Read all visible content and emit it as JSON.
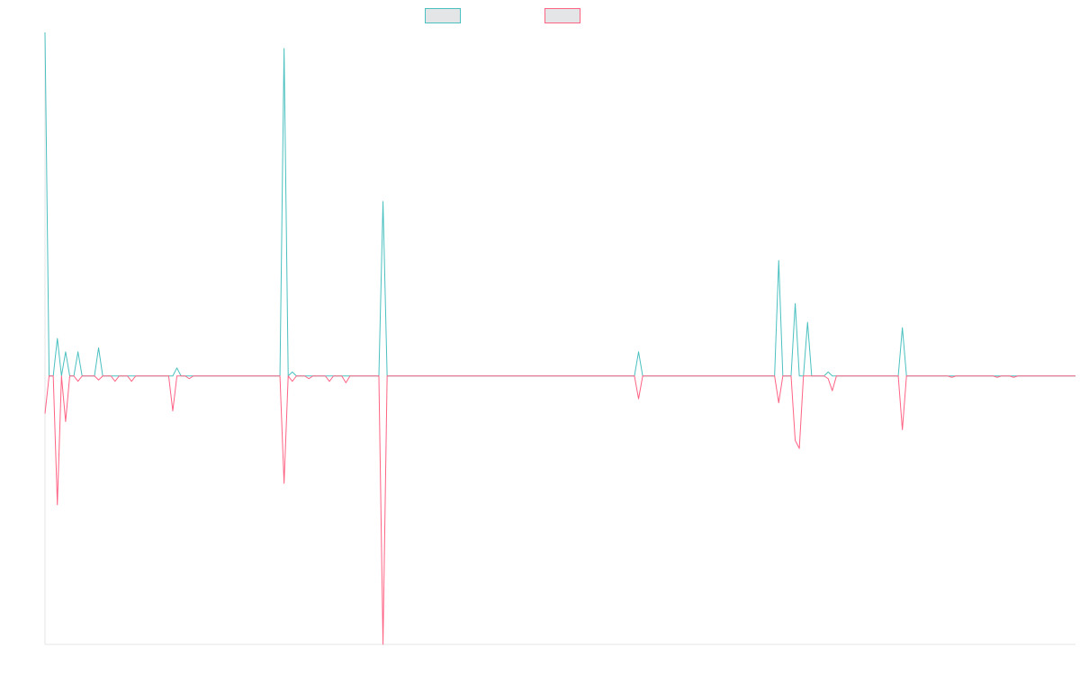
{
  "chart_data": {
    "type": "line",
    "title": "",
    "xlabel": "",
    "ylabel": "",
    "grid": false,
    "legend_placement": "top-center",
    "x_count": 251,
    "ylim": [
      -100,
      128
    ],
    "series": [
      {
        "name": "",
        "color": "#4bc0c0",
        "fill": "rgba(201,203,207,0.5)",
        "points": [
          [
            0,
            128
          ],
          [
            3,
            14
          ],
          [
            5,
            9
          ],
          [
            8,
            9
          ],
          [
            13,
            10.5
          ],
          [
            32,
            3
          ],
          [
            58,
            122
          ],
          [
            60,
            1.5
          ],
          [
            82,
            65
          ],
          [
            144,
            9
          ],
          [
            178,
            43
          ],
          [
            182,
            27
          ],
          [
            185,
            20
          ],
          [
            190,
            1.5
          ],
          [
            208,
            18
          ]
        ]
      },
      {
        "name": "",
        "color": "#ff6384",
        "fill": "rgba(201,203,207,0.5)",
        "points": [
          [
            0,
            -14
          ],
          [
            3,
            -48
          ],
          [
            5,
            -17
          ],
          [
            8,
            -2
          ],
          [
            13,
            -1.5
          ],
          [
            17,
            -2
          ],
          [
            21,
            -2
          ],
          [
            31,
            -13
          ],
          [
            35,
            -1
          ],
          [
            58,
            -40
          ],
          [
            60,
            -2
          ],
          [
            64,
            -1
          ],
          [
            69,
            -2
          ],
          [
            73,
            -2.5
          ],
          [
            82,
            -100
          ],
          [
            144,
            -8.5
          ],
          [
            178,
            -10
          ],
          [
            182,
            -24
          ],
          [
            183,
            -27
          ],
          [
            190,
            -1
          ],
          [
            191,
            -5.5
          ],
          [
            208,
            -20
          ],
          [
            220,
            -0.5
          ],
          [
            231,
            -0.5
          ],
          [
            235,
            -0.5
          ]
        ]
      }
    ]
  }
}
